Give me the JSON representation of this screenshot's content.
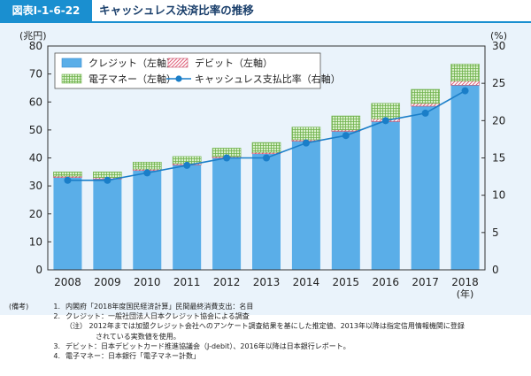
{
  "header": {
    "figure_label": "図表Ⅰ-1-6-22",
    "title": "キャッシュレス決済比率の推移"
  },
  "chart_data": {
    "type": "bar",
    "stacked": true,
    "categories": [
      "2008",
      "2009",
      "2010",
      "2011",
      "2012",
      "2013",
      "2014",
      "2015",
      "2016",
      "2017",
      "2018"
    ],
    "x_unit": "(年)",
    "left_axis": {
      "unit": "(兆円)",
      "ylim": [
        0,
        80
      ],
      "ticks": [
        0,
        10,
        20,
        30,
        40,
        50,
        60,
        70,
        80
      ]
    },
    "right_axis": {
      "unit": "(%)",
      "ylim": [
        0,
        30
      ],
      "ticks": [
        0,
        5,
        10,
        15,
        20,
        25,
        30
      ]
    },
    "series": [
      {
        "name": "クレジット（左軸）",
        "axis": "left",
        "kind": "bar",
        "values": [
          33,
          32.5,
          35.5,
          37.5,
          40,
          41.5,
          46,
          49.5,
          53,
          58.5,
          66
        ],
        "color": "#5aaee8"
      },
      {
        "name": "デビット（左軸）",
        "axis": "left",
        "kind": "bar",
        "values": [
          0.5,
          0.5,
          0.5,
          0.5,
          0.5,
          0.5,
          0.5,
          0.5,
          1,
          1,
          1.5
        ],
        "color": "#f3b7c3"
      },
      {
        "name": "電子マネー（左軸）",
        "axis": "left",
        "kind": "bar",
        "values": [
          1.5,
          2,
          2.5,
          2.5,
          3,
          3.5,
          4.5,
          5,
          5.5,
          5,
          6
        ],
        "color": "#b7dda0"
      },
      {
        "name": "キャッシュレス支払比率（右軸）",
        "axis": "right",
        "kind": "line",
        "values": [
          12,
          12,
          13,
          14,
          15,
          15,
          17,
          18,
          20,
          21,
          24
        ],
        "color": "#1a7ec8"
      }
    ]
  },
  "notes": {
    "label": "(備考)",
    "items": [
      {
        "num": "1.",
        "text": "内閣府「2018年度国民経済計算」民間最終消費支出：名目"
      },
      {
        "num": "2.",
        "text": "クレジット：一般社団法人日本クレジット協会による調査"
      },
      {
        "sub": "（注） 2012年までは加盟クレジット会社へのアンケート調査結果を基にした推定値、2013年以降は指定信用情報機関に登録"
      },
      {
        "sub2": "されている実数値を使用。"
      },
      {
        "num": "3.",
        "text": "デビット：日本デビットカード推進協議会（J-debit）、2016年以降は日本銀行レポート。"
      },
      {
        "num": "4.",
        "text": "電子マネー：日本銀行「電子マネー計数」"
      }
    ]
  }
}
